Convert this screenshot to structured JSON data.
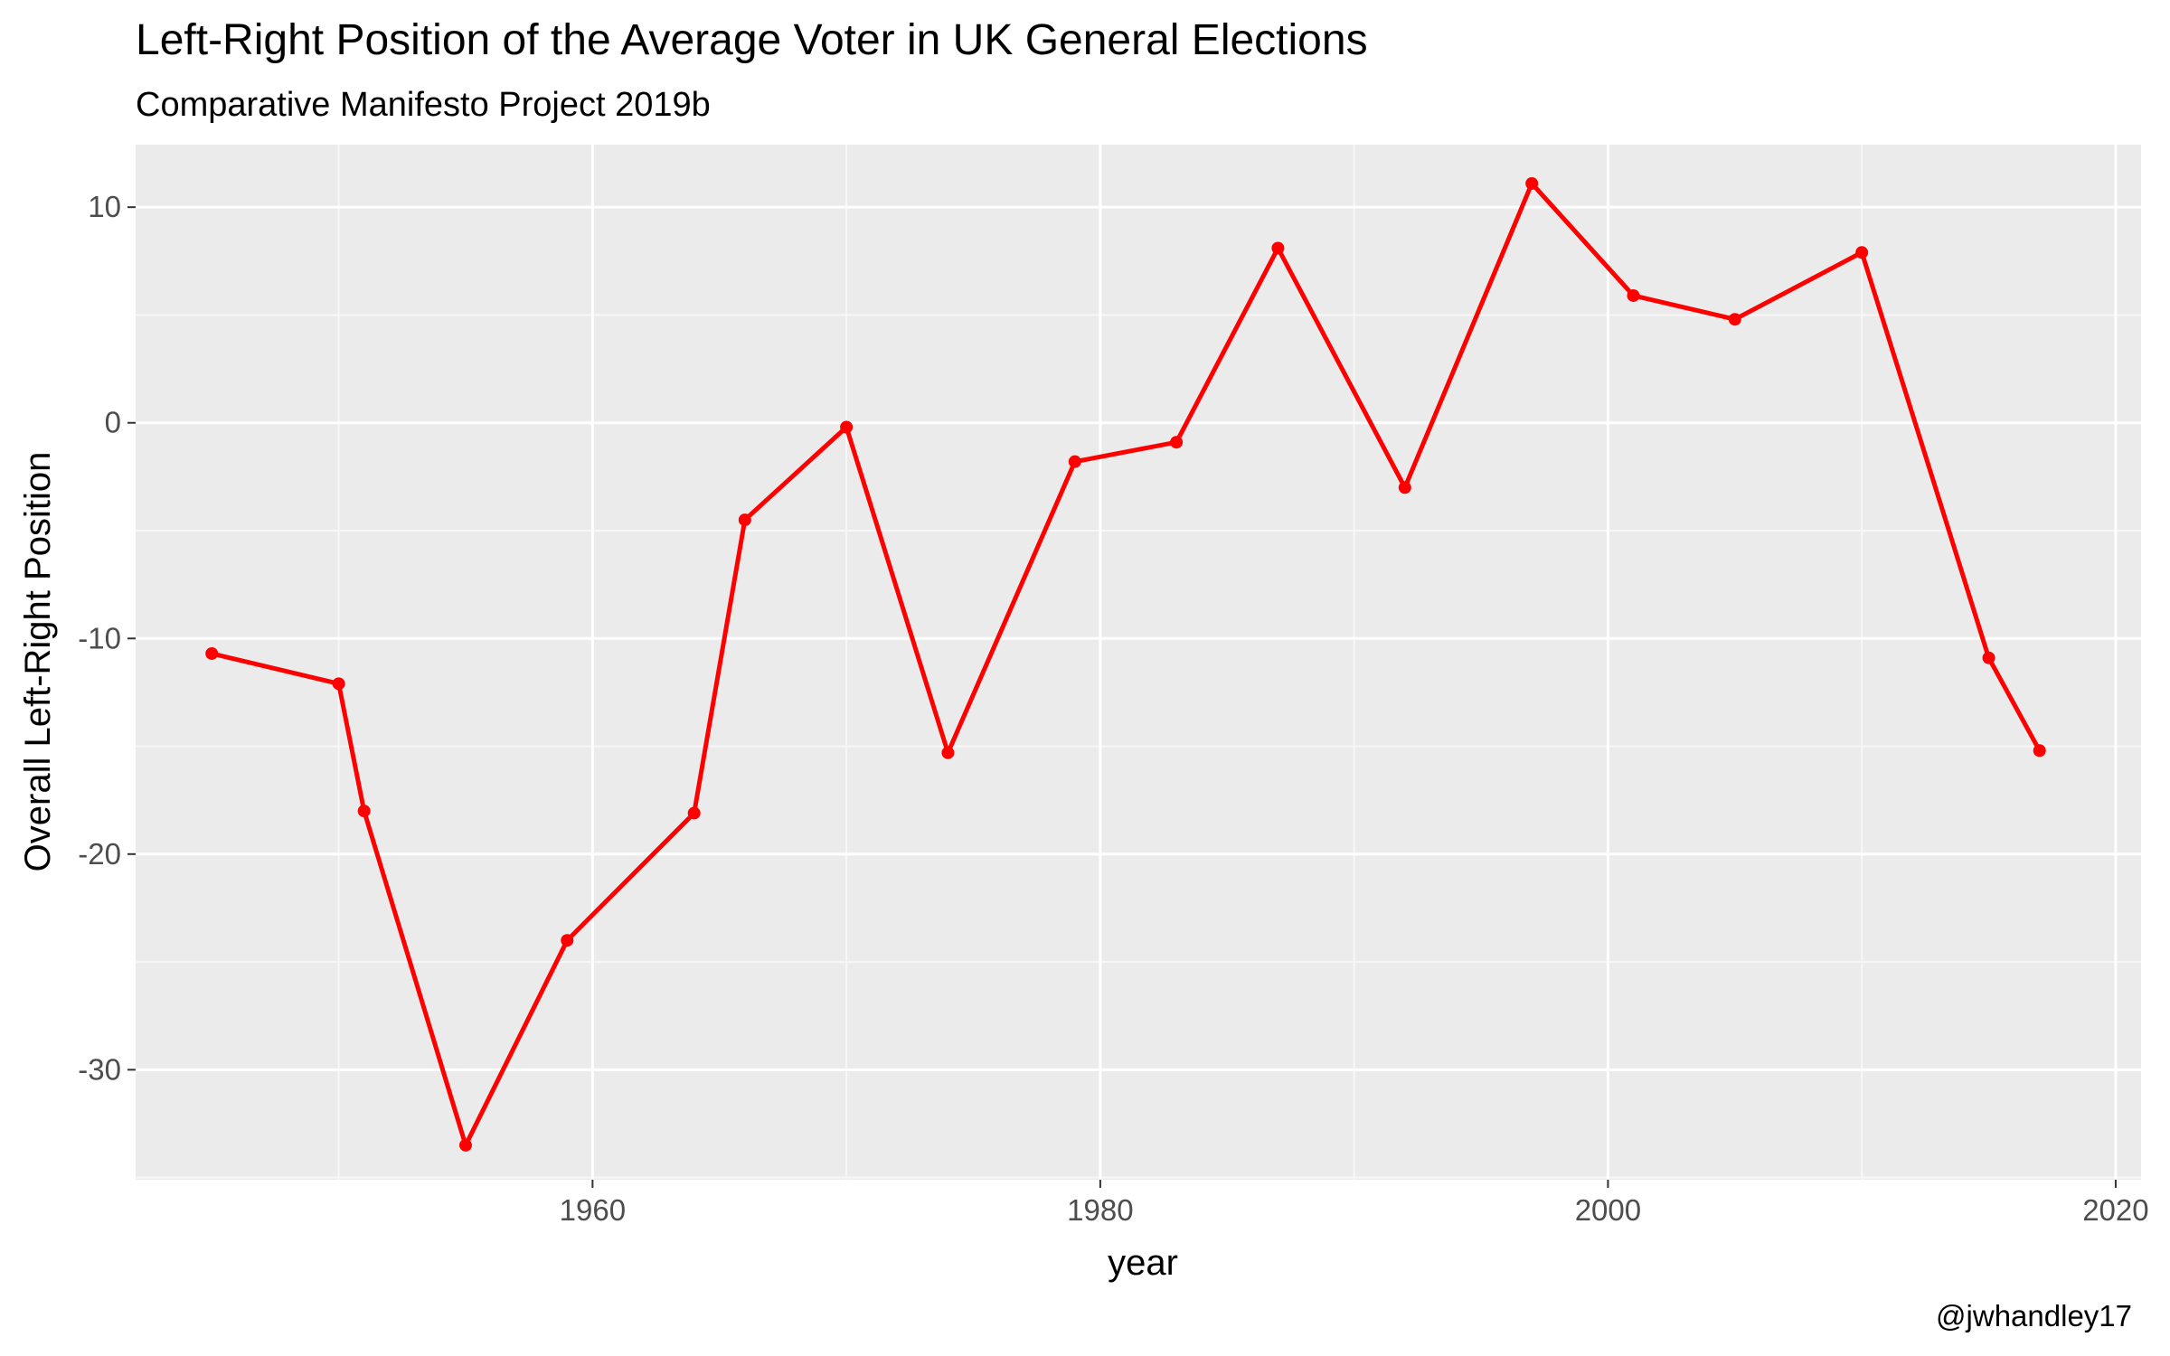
{
  "chart_data": {
    "type": "line",
    "title": "Left-Right Position of the Average Voter in UK General Elections",
    "subtitle": "Comparative Manifesto Project 2019b",
    "xlabel": "year",
    "ylabel": "Overall Left-Right Position",
    "caption": "@jwhandley17",
    "xlim": [
      1942,
      2021
    ],
    "ylim": [
      -35.1,
      12.9
    ],
    "x_ticks": [
      1960,
      1980,
      2000,
      2020
    ],
    "x_tick_labels": [
      "1960",
      "1980",
      "2000",
      "2020"
    ],
    "y_ticks": [
      10,
      0,
      -10,
      -20,
      -30
    ],
    "y_tick_labels": [
      "10",
      "0",
      "-10",
      "-20",
      "-30"
    ],
    "grid": true,
    "legend": "none",
    "series": [
      {
        "color": "#ff0000",
        "x": [
          1945,
          1950,
          1951,
          1955,
          1959,
          1964,
          1966,
          1970,
          1974,
          1979,
          1983,
          1987,
          1992,
          1997,
          2001,
          2005,
          2010,
          2015,
          2017
        ],
        "y": [
          -10.7,
          -12.1,
          -18.0,
          -33.5,
          -24.0,
          -18.1,
          -4.5,
          -0.2,
          -15.3,
          -1.8,
          -0.9,
          8.1,
          -3.0,
          11.1,
          5.9,
          4.8,
          7.9,
          -10.9,
          -15.2
        ]
      }
    ]
  },
  "colors": {
    "panel_background": "#ebebeb",
    "grid_major": "#ffffff",
    "grid_minor": "#f7f7f7",
    "line": "#ff0000",
    "tick_text": "#4d4d4d",
    "tick_mark": "#333333"
  }
}
